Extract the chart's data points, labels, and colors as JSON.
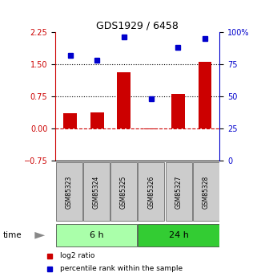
{
  "title": "GDS1929 / 6458",
  "samples": [
    "GSM85323",
    "GSM85324",
    "GSM85325",
    "GSM85326",
    "GSM85327",
    "GSM85328"
  ],
  "log2_ratio": [
    0.35,
    0.38,
    1.3,
    -0.02,
    0.8,
    1.55
  ],
  "percentile_rank": [
    82,
    78,
    96,
    48,
    88,
    95
  ],
  "bar_color": "#cc0000",
  "dot_color": "#0000cc",
  "ylim_left": [
    -0.75,
    2.25
  ],
  "ylim_right": [
    0,
    100
  ],
  "yticks_left": [
    -0.75,
    0,
    0.75,
    1.5,
    2.25
  ],
  "yticks_right": [
    0,
    25,
    50,
    75,
    100
  ],
  "yticklabels_right": [
    "0",
    "25",
    "50",
    "75",
    "100%"
  ],
  "hline_dotted_1": 1.5,
  "hline_dotted_2": 0.75,
  "hline_dashed_0": 0.0,
  "groups": [
    {
      "label": "6 h",
      "samples": [
        0,
        1,
        2
      ],
      "color": "#aaffaa"
    },
    {
      "label": "24 h",
      "samples": [
        3,
        4,
        5
      ],
      "color": "#33cc33"
    }
  ],
  "time_label": "time",
  "legend_entries": [
    {
      "label": "log2 ratio",
      "color": "#cc0000"
    },
    {
      "label": "percentile rank within the sample",
      "color": "#0000cc"
    }
  ],
  "bg_color": "#ffffff",
  "sample_box_color": "#cccccc",
  "bar_width": 0.5
}
